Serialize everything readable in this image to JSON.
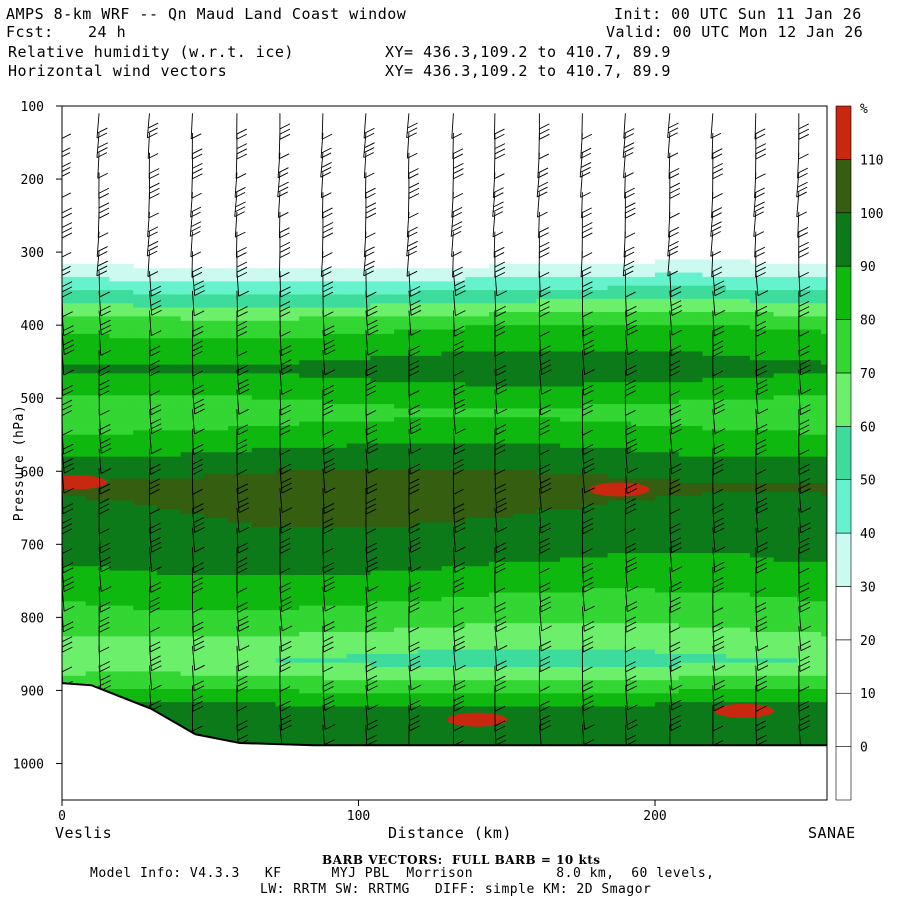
{
  "header": {
    "title": "AMPS 8-km WRF -- Qn Maud Land Coast window",
    "fcst_label": "Fcst:",
    "fcst_value": "24 h",
    "field1": "Relative humidity (w.r.t. ice)",
    "field2": "Horizontal wind vectors",
    "xy1": "XY= 436.3,109.2 to 410.7, 89.9",
    "xy2": "XY= 436.3,109.2 to 410.7, 89.9",
    "init": "Init: 00 UTC Sun 11 Jan 26",
    "valid": "Valid: 00 UTC Mon 12 Jan 26"
  },
  "footer": {
    "barb_note": "BARB VECTORS:  FULL BARB = 10 kts",
    "model_info": "Model Info: V4.3.3   KF      MYJ PBL  Morrison          8.0 km,  60 levels,",
    "model_info2": "LW: RRTM SW: RRTMG   DIFF: simple KM: 2D Smagor"
  },
  "chart_data": {
    "type": "heatmap",
    "title": "Relative humidity (w.r.t. ice) and horizontal wind vectors",
    "xlabel": "Distance (km)",
    "ylabel": "Pressure (hPa)",
    "x_left_label": "Veslis",
    "x_right_label": "SANAE",
    "xlim": [
      0,
      258
    ],
    "ylim": [
      100,
      1050
    ],
    "x_ticks": [
      0,
      100,
      200
    ],
    "y_ticks": [
      100,
      200,
      300,
      400,
      500,
      600,
      700,
      800,
      900,
      1000
    ],
    "colorbar": {
      "unit": "%",
      "levels": [
        0,
        10,
        20,
        30,
        40,
        50,
        60,
        70,
        80,
        90,
        100,
        110
      ],
      "colors": [
        "#ffffff",
        "#ffffff",
        "#ffffff",
        "#ccfaf0",
        "#66f2cc",
        "#3ddc9c",
        "#6cf06c",
        "#33d633",
        "#0eb80e",
        "#0d7a1a",
        "#355e10",
        "#c8280f"
      ]
    },
    "rh_profile_by_pressure": [
      {
        "p": 300,
        "rh": 20
      },
      {
        "p": 340,
        "rh": 42
      },
      {
        "p": 400,
        "rh": 78
      },
      {
        "p": 460,
        "rh": 94
      },
      {
        "p": 520,
        "rh": 75
      },
      {
        "p": 620,
        "rh": 104
      },
      {
        "p": 720,
        "rh": 92
      },
      {
        "p": 800,
        "rh": 75
      },
      {
        "p": 860,
        "rh": 58
      },
      {
        "p": 930,
        "rh": 96
      }
    ],
    "red_patches_rh_over_110": [
      {
        "x_km": 5,
        "p": 615
      },
      {
        "x_km": 188,
        "p": 625
      },
      {
        "x_km": 140,
        "p": 940
      },
      {
        "x_km": 230,
        "p": 928
      }
    ],
    "surface_pressure": [
      {
        "x_km": 0,
        "p": 890
      },
      {
        "x_km": 10,
        "p": 893
      },
      {
        "x_km": 30,
        "p": 925
      },
      {
        "x_km": 45,
        "p": 960
      },
      {
        "x_km": 60,
        "p": 972
      },
      {
        "x_km": 85,
        "p": 975
      },
      {
        "x_km": 258,
        "p": 975
      }
    ],
    "barb_columns_km": [
      0,
      12.5,
      29.5,
      44,
      59,
      73.5,
      88,
      102.5,
      117,
      132,
      146,
      161,
      175.5,
      190,
      205,
      219.5,
      234,
      248.5
    ],
    "barb_spacing_note": "FULL BARB = 10 kts"
  }
}
